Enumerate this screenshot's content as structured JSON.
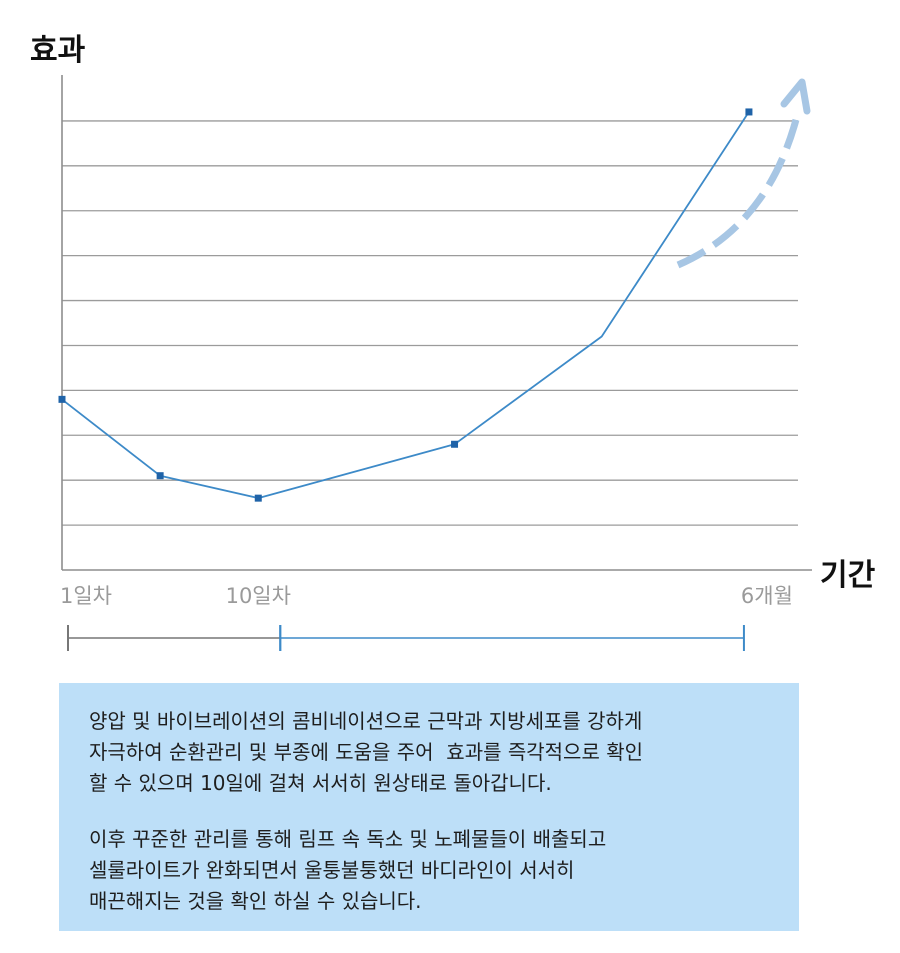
{
  "chart_data": {
    "type": "line",
    "ylabel": "효과",
    "xlabel": "기간",
    "x": [
      0,
      1,
      2,
      4,
      5.5,
      7
    ],
    "values": [
      5.8,
      4.1,
      3.6,
      4.8,
      7.2,
      12.2
    ],
    "tick_labels": [
      {
        "x": 0,
        "label": "1일차"
      },
      {
        "x": 2,
        "label": "10일차"
      },
      {
        "x": 7,
        "label": "6개월"
      }
    ],
    "xlim": [
      0,
      7.5
    ],
    "ylim": [
      2,
      12.8
    ],
    "yticks": [
      3,
      4,
      5,
      6,
      7,
      8,
      9,
      10,
      11,
      12
    ],
    "grid": true,
    "colors": {
      "line": "#3d8ac8",
      "marker": "#1f63a8",
      "grid": "#9b9b9b",
      "axis": "#8e8e8e",
      "arrow": "#a7c6e4",
      "phase_initial": "#777777",
      "phase_later": "#3d8ac8"
    },
    "phases": [
      {
        "from": 0,
        "to": 2
      },
      {
        "from": 2,
        "to": 7
      }
    ],
    "trend_arrow": "up"
  },
  "description": {
    "paragraph1": [
      "양압 및 바이브레이션의 콤비네이션으로 근막과 지방세포를 강하게",
      "자극하여 순환관리 및 부종에 도움을 주어  효과를 즉각적으로 확인",
      "할 수 있으며 10일에 걸쳐 서서히 원상태로 돌아갑니다."
    ],
    "paragraph2": [
      "이후 꾸준한 관리를 통해 림프 속 독소 및 노폐물들이 배출되고",
      "셀룰라이트가 완화되면서 울퉁불퉁했던 바디라인이 서서히",
      "매끈해지는 것을 확인 하실 수 있습니다."
    ],
    "background": "#bddff8"
  }
}
